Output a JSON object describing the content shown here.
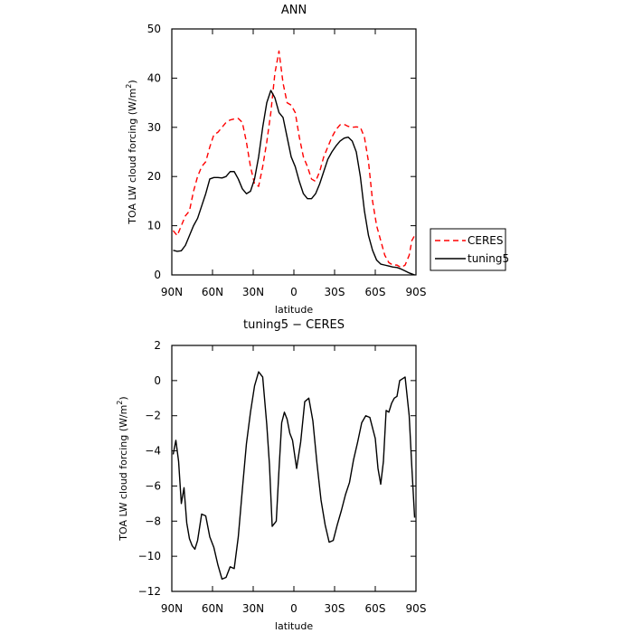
{
  "chart_data": [
    {
      "type": "line",
      "title": "ANN",
      "xlabel": "latitude",
      "ylabel_main": "TOA LW cloud forcing (W/m",
      "ylabel_sup": "2",
      "ylabel_end": ")",
      "xlim": [
        90,
        -90
      ],
      "ylim": [
        0,
        50
      ],
      "x_ticks": [
        90,
        60,
        30,
        0,
        -30,
        -60,
        -90
      ],
      "x_tick_labels": [
        "90N",
        "60N",
        "30N",
        "0",
        "30S",
        "60S",
        "90S"
      ],
      "y_ticks": [
        0,
        10,
        20,
        30,
        40,
        50
      ],
      "y_tick_labels": [
        "0",
        "10",
        "20",
        "30",
        "40",
        "50"
      ],
      "legend_placement": "outside-right",
      "series": [
        {
          "name": "CERES",
          "color": "#ff0000",
          "dash": "dashed",
          "x": [
            89,
            86,
            83,
            80,
            77,
            74,
            71,
            68,
            65,
            62,
            59,
            56,
            53,
            50,
            47,
            44,
            41,
            38,
            35,
            32,
            29,
            26,
            23,
            20,
            17,
            14,
            11,
            8,
            5,
            2,
            -1,
            -4,
            -7,
            -10,
            -13,
            -16,
            -19,
            -22,
            -25,
            -28,
            -31,
            -34,
            -37,
            -40,
            -43,
            -46,
            -49,
            -52,
            -55,
            -58,
            -61,
            -64,
            -67,
            -70,
            -73,
            -76,
            -79,
            -82,
            -85,
            -87,
            -89
          ],
          "y": [
            9,
            8,
            10,
            12,
            13,
            17,
            20,
            22,
            23,
            26,
            28.5,
            29,
            30,
            31,
            31.5,
            31.7,
            31.8,
            31,
            27,
            22,
            18.5,
            18,
            22,
            27,
            33,
            41,
            45.5,
            39,
            35,
            34.5,
            33,
            28,
            24,
            22,
            19.5,
            19,
            21,
            24,
            26,
            28,
            29.5,
            30.5,
            30.6,
            30.2,
            30,
            30.1,
            30,
            28,
            23,
            15,
            10,
            7,
            4,
            2.5,
            2,
            2,
            1.5,
            2,
            4,
            7,
            8
          ]
        },
        {
          "name": "tuning5",
          "color": "#000000",
          "dash": "solid",
          "x": [
            89,
            86,
            83,
            80,
            77,
            74,
            71,
            68,
            65,
            62,
            59,
            56,
            53,
            50,
            47,
            44,
            41,
            38,
            35,
            32,
            29,
            26,
            23,
            20,
            17,
            14,
            11,
            8,
            5,
            2,
            -1,
            -4,
            -7,
            -10,
            -13,
            -16,
            -19,
            -22,
            -25,
            -28,
            -31,
            -34,
            -37,
            -40,
            -43,
            -46,
            -49,
            -52,
            -55,
            -58,
            -61,
            -64,
            -67,
            -70,
            -73,
            -76,
            -79,
            -82,
            -85,
            -87,
            -89
          ],
          "y": [
            5,
            4.8,
            4.9,
            6,
            8,
            10,
            11.5,
            14,
            16.5,
            19.5,
            19.8,
            19.8,
            19.7,
            20,
            21,
            21,
            19.5,
            17.5,
            16.5,
            17,
            19.5,
            24,
            30,
            35,
            37.5,
            36,
            33,
            32,
            28,
            24,
            22,
            19,
            16.5,
            15.5,
            15.5,
            16.5,
            18.5,
            21,
            23.5,
            25,
            26.2,
            27.2,
            27.8,
            28,
            27.2,
            25,
            20,
            13,
            8,
            5,
            3,
            2.2,
            2,
            1.8,
            1.6,
            1.5,
            1.2,
            0.8,
            0.4,
            0.2,
            0
          ]
        }
      ]
    },
    {
      "type": "line",
      "title": "tuning5 − CERES",
      "xlabel": "latitude",
      "ylabel_main": "TOA LW cloud forcing (W/m",
      "ylabel_sup": "2",
      "ylabel_end": ")",
      "xlim": [
        90,
        -90
      ],
      "ylim": [
        -12,
        2
      ],
      "x_ticks": [
        90,
        60,
        30,
        0,
        -30,
        -60,
        -90
      ],
      "x_tick_labels": [
        "90N",
        "60N",
        "30N",
        "0",
        "30S",
        "60S",
        "90S"
      ],
      "y_ticks": [
        -12,
        -10,
        -8,
        -6,
        -4,
        -2,
        0,
        2
      ],
      "y_tick_labels": [
        "−12",
        "−10",
        "−8",
        "−6",
        "−4",
        "−2",
        "0",
        "2"
      ],
      "series": [
        {
          "name": "",
          "color": "#000000",
          "dash": "solid",
          "x": [
            89,
            87,
            85,
            83,
            81,
            79,
            77,
            75,
            73,
            71,
            68,
            65,
            62,
            59,
            56,
            53,
            50,
            47,
            44,
            41,
            38,
            35,
            32,
            29,
            26,
            23,
            20,
            18,
            16,
            13,
            11,
            9,
            7,
            5,
            3,
            1,
            -2,
            -5,
            -8,
            -11,
            -14,
            -17,
            -20,
            -23,
            -26,
            -29,
            -32,
            -35,
            -38,
            -41,
            -44,
            -47,
            -50,
            -53,
            -56,
            -58,
            -60,
            -62,
            -64,
            -66,
            -68,
            -70,
            -72,
            -74,
            -76,
            -78,
            -80,
            -82,
            -85,
            -87,
            -89
          ],
          "y": [
            -4.2,
            -3.4,
            -4.6,
            -7,
            -6.1,
            -8.1,
            -9,
            -9.4,
            -9.6,
            -9.1,
            -7.6,
            -7.7,
            -8.9,
            -9.5,
            -10.5,
            -11.3,
            -11.2,
            -10.6,
            -10.7,
            -8.9,
            -6.2,
            -3.6,
            -1.8,
            -0.3,
            0.5,
            0.2,
            -2.5,
            -4.8,
            -8.3,
            -8,
            -5.1,
            -2.4,
            -1.8,
            -2.2,
            -3,
            -3.4,
            -5,
            -3.5,
            -1.2,
            -1,
            -2.3,
            -4.7,
            -6.8,
            -8.2,
            -9.2,
            -9.1,
            -8.2,
            -7.4,
            -6.5,
            -5.8,
            -4.5,
            -3.5,
            -2.4,
            -2,
            -2.1,
            -2.7,
            -3.3,
            -5,
            -5.9,
            -4.6,
            -1.7,
            -1.8,
            -1.3,
            -1,
            -0.9,
            0,
            0.1,
            0.2,
            -2,
            -5,
            -7.8
          ]
        }
      ]
    }
  ]
}
